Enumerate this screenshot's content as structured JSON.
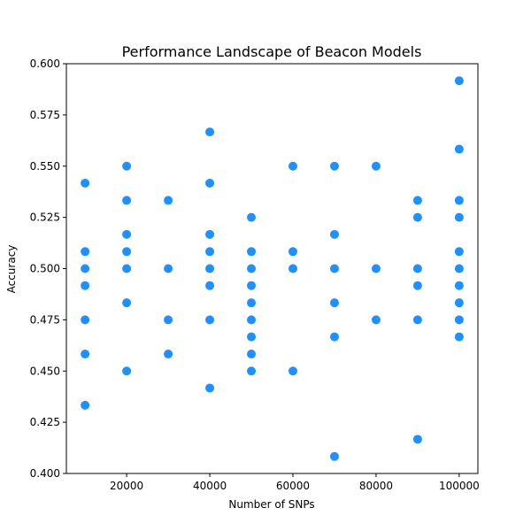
{
  "chart_data": {
    "type": "scatter",
    "title": "Performance Landscape of Beacon Models",
    "xlabel": "Number of SNPs",
    "ylabel": "Accuracy",
    "xlim": [
      5500,
      104500
    ],
    "ylim": [
      0.4,
      0.6
    ],
    "xticks": [
      20000,
      40000,
      60000,
      80000,
      100000
    ],
    "xtick_labels": [
      "20000",
      "40000",
      "60000",
      "80000",
      "100000"
    ],
    "yticks": [
      0.4,
      0.425,
      0.45,
      0.475,
      0.5,
      0.525,
      0.55,
      0.575,
      0.6
    ],
    "ytick_labels": [
      "0.400",
      "0.425",
      "0.450",
      "0.475",
      "0.500",
      "0.525",
      "0.550",
      "0.575",
      "0.600"
    ],
    "marker_color": "#1e90ff",
    "grid": false,
    "points": [
      {
        "x": 10000,
        "y": 0.5417
      },
      {
        "x": 10000,
        "y": 0.5083
      },
      {
        "x": 10000,
        "y": 0.5
      },
      {
        "x": 10000,
        "y": 0.4917
      },
      {
        "x": 10000,
        "y": 0.475
      },
      {
        "x": 10000,
        "y": 0.4583
      },
      {
        "x": 10000,
        "y": 0.4333
      },
      {
        "x": 20000,
        "y": 0.55
      },
      {
        "x": 20000,
        "y": 0.5333
      },
      {
        "x": 20000,
        "y": 0.5167
      },
      {
        "x": 20000,
        "y": 0.5083
      },
      {
        "x": 20000,
        "y": 0.5
      },
      {
        "x": 20000,
        "y": 0.4833
      },
      {
        "x": 20000,
        "y": 0.45
      },
      {
        "x": 30000,
        "y": 0.5333
      },
      {
        "x": 30000,
        "y": 0.5
      },
      {
        "x": 30000,
        "y": 0.475
      },
      {
        "x": 30000,
        "y": 0.4583
      },
      {
        "x": 40000,
        "y": 0.5667
      },
      {
        "x": 40000,
        "y": 0.5417
      },
      {
        "x": 40000,
        "y": 0.5167
      },
      {
        "x": 40000,
        "y": 0.5083
      },
      {
        "x": 40000,
        "y": 0.5
      },
      {
        "x": 40000,
        "y": 0.4917
      },
      {
        "x": 40000,
        "y": 0.475
      },
      {
        "x": 40000,
        "y": 0.4417
      },
      {
        "x": 50000,
        "y": 0.525
      },
      {
        "x": 50000,
        "y": 0.5083
      },
      {
        "x": 50000,
        "y": 0.5
      },
      {
        "x": 50000,
        "y": 0.4917
      },
      {
        "x": 50000,
        "y": 0.4833
      },
      {
        "x": 50000,
        "y": 0.475
      },
      {
        "x": 50000,
        "y": 0.4667
      },
      {
        "x": 50000,
        "y": 0.4583
      },
      {
        "x": 50000,
        "y": 0.45
      },
      {
        "x": 60000,
        "y": 0.55
      },
      {
        "x": 60000,
        "y": 0.5083
      },
      {
        "x": 60000,
        "y": 0.5
      },
      {
        "x": 60000,
        "y": 0.45
      },
      {
        "x": 70000,
        "y": 0.55
      },
      {
        "x": 70000,
        "y": 0.5167
      },
      {
        "x": 70000,
        "y": 0.5
      },
      {
        "x": 70000,
        "y": 0.4833
      },
      {
        "x": 70000,
        "y": 0.4667
      },
      {
        "x": 70000,
        "y": 0.4083
      },
      {
        "x": 80000,
        "y": 0.55
      },
      {
        "x": 80000,
        "y": 0.5
      },
      {
        "x": 80000,
        "y": 0.475
      },
      {
        "x": 90000,
        "y": 0.5333
      },
      {
        "x": 90000,
        "y": 0.525
      },
      {
        "x": 90000,
        "y": 0.5
      },
      {
        "x": 90000,
        "y": 0.4917
      },
      {
        "x": 90000,
        "y": 0.475
      },
      {
        "x": 90000,
        "y": 0.4167
      },
      {
        "x": 100000,
        "y": 0.5917
      },
      {
        "x": 100000,
        "y": 0.5583
      },
      {
        "x": 100000,
        "y": 0.5333
      },
      {
        "x": 100000,
        "y": 0.525
      },
      {
        "x": 100000,
        "y": 0.5083
      },
      {
        "x": 100000,
        "y": 0.5
      },
      {
        "x": 100000,
        "y": 0.4917
      },
      {
        "x": 100000,
        "y": 0.4833
      },
      {
        "x": 100000,
        "y": 0.475
      },
      {
        "x": 100000,
        "y": 0.4667
      }
    ]
  }
}
